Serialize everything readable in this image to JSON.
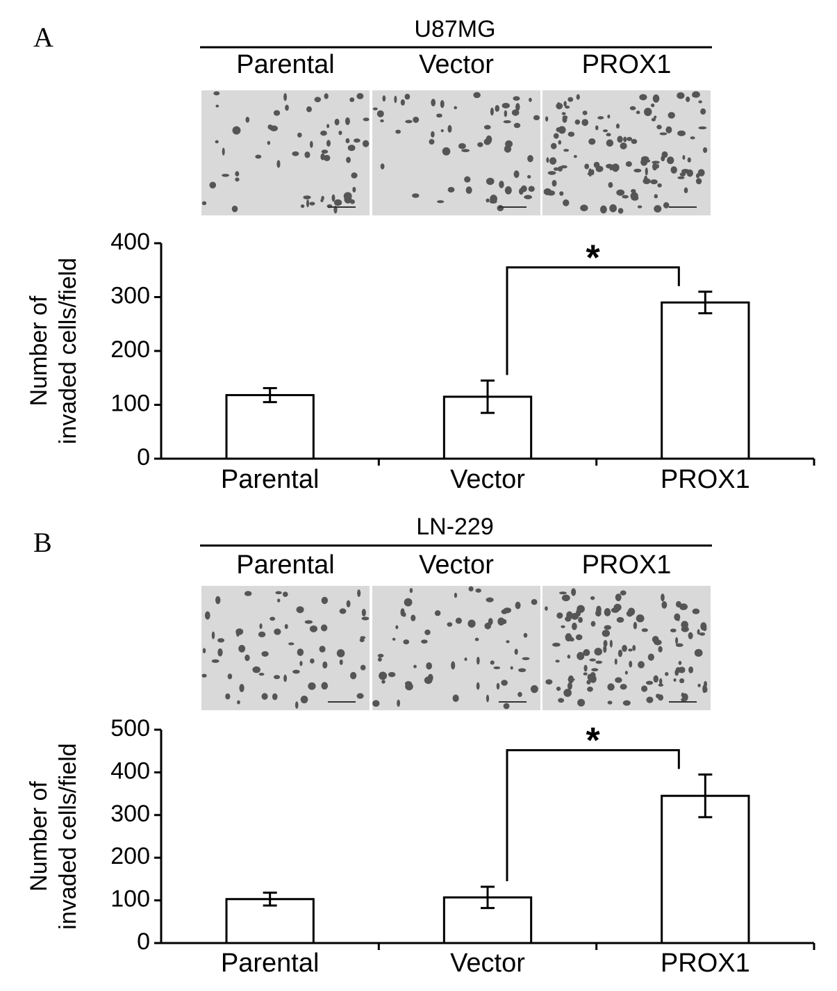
{
  "chart_data": [
    {
      "type": "bar",
      "panel_label": "A",
      "cell_line": "U87MG",
      "image_labels": [
        "Parental",
        "Vector",
        "PROX1"
      ],
      "ylabel": [
        "Number of",
        "invaded cells/field"
      ],
      "categories": [
        "Parental",
        "Vector",
        "PROX1"
      ],
      "values": [
        118,
        115,
        290
      ],
      "errors": [
        13,
        30,
        20
      ],
      "ylim": [
        0,
        400
      ],
      "yticks": [
        0,
        100,
        200,
        300,
        400
      ],
      "significance": [
        {
          "label": "*",
          "pair": [
            1,
            2
          ]
        }
      ],
      "color": "#ffffff"
    },
    {
      "type": "bar",
      "panel_label": "B",
      "cell_line": "LN-229",
      "image_labels": [
        "Parental",
        "Vector",
        "PROX1"
      ],
      "ylabel": [
        "Number of",
        "invaded cells/field"
      ],
      "categories": [
        "Parental",
        "Vector",
        "PROX1"
      ],
      "values": [
        103,
        107,
        345
      ],
      "errors": [
        15,
        25,
        50
      ],
      "ylim": [
        0,
        500
      ],
      "yticks": [
        0,
        100,
        200,
        300,
        400,
        500
      ],
      "significance": [
        {
          "label": "*",
          "pair": [
            1,
            2
          ]
        }
      ],
      "color": "#ffffff"
    }
  ]
}
